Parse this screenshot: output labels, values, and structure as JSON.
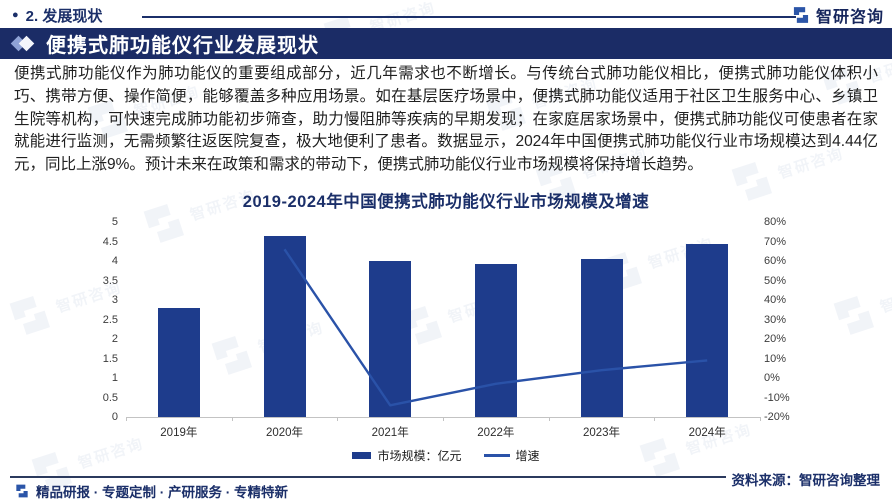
{
  "header": {
    "bullet": "●",
    "section_label": "2. 发展现状",
    "brand": "智研咨询"
  },
  "banner": {
    "title": "便携式肺功能仪行业发展现状"
  },
  "body": {
    "paragraph": "便携式肺功能仪作为肺功能仪的重要组成部分，近几年需求也不断增长。与传统台式肺功能仪相比，便携式肺功能仪体积小巧、携带方便、操作简便，能够覆盖多种应用场景。如在基层医疗场景中，便携式肺功能仪适用于社区卫生服务中心、乡镇卫生院等机构，可快速完成肺功能初步筛查，助力慢阻肺等疾病的早期发现；在家庭居家场景中，便携式肺功能仪可使患者在家就能进行监测，无需频繁往返医院复查，极大地便利了患者。数据显示，2024年中国便携式肺功能仪行业市场规模达到4.44亿元，同比上涨9%。预计未来在政策和需求的带动下，便携式肺功能仪行业市场规模将保持增长趋势。"
  },
  "chart_data": {
    "type": "bar+line",
    "title": "2019-2024年中国便携式肺功能仪行业市场规模及增速",
    "categories": [
      "2019年",
      "2020年",
      "2021年",
      "2022年",
      "2023年",
      "2024年"
    ],
    "series": [
      {
        "name": "市场规模：亿元",
        "type": "bar",
        "axis": "left",
        "color": "#1e3c8c",
        "values": [
          2.8,
          4.65,
          4.0,
          3.92,
          4.06,
          4.44
        ]
      },
      {
        "name": "增速",
        "type": "line",
        "axis": "right",
        "color": "#2a52a8",
        "values": [
          null,
          66,
          -14,
          -3,
          4,
          9
        ]
      }
    ],
    "left_axis": {
      "min": 0,
      "max": 5,
      "step": 0.5,
      "suffix": ""
    },
    "right_axis": {
      "min": -20,
      "max": 80,
      "step": 10,
      "suffix": "%"
    },
    "grid": false,
    "legend_position": "bottom"
  },
  "footer": {
    "tagline": "精品研报 · 专题定制 · 产研服务 · 专精特新",
    "source": "资料来源：智研咨询整理"
  },
  "colors": {
    "accent_navy": "#1b2c66",
    "bar_blue": "#1e3c8c",
    "line_blue": "#2a52a8"
  }
}
